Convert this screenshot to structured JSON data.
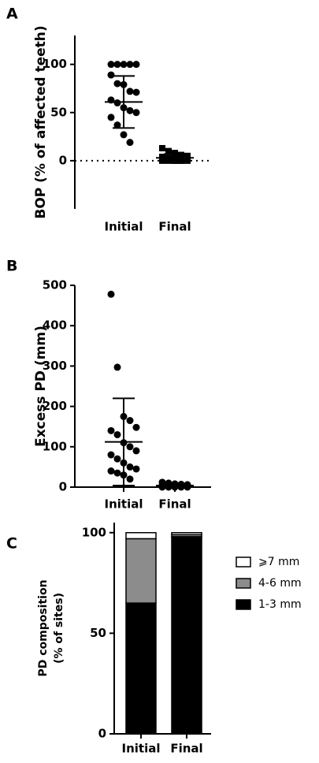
{
  "chart_data": [
    {
      "type": "strip",
      "label": "A",
      "ylabel": "BOP (% of affected teeth)",
      "categories": [
        "Initial",
        "Final"
      ],
      "series": [
        {
          "values": [
            100,
            100,
            100,
            100,
            100,
            89,
            80,
            79,
            72,
            71,
            63,
            60,
            55,
            52,
            50,
            45,
            37,
            27,
            19
          ],
          "marker": "circle",
          "mean": 61,
          "sd": 27,
          "color": "#000000"
        },
        {
          "values": [
            13,
            10,
            8,
            6,
            5,
            4,
            3,
            3,
            2,
            2,
            1,
            1,
            0,
            0,
            0,
            0,
            0,
            0,
            0
          ],
          "marker": "square",
          "mean": 3,
          "sd": 4,
          "color": "#000000"
        }
      ],
      "ylim": [
        -50,
        130
      ],
      "yticks": [
        0,
        50,
        100
      ],
      "hline": 0
    },
    {
      "type": "strip",
      "label": "B",
      "ylabel": "Excess PD (mm)",
      "categories": [
        "Initial",
        "Final"
      ],
      "series": [
        {
          "values": [
            478,
            297,
            175,
            165,
            148,
            140,
            130,
            110,
            100,
            90,
            80,
            70,
            60,
            50,
            45,
            40,
            35,
            30,
            20
          ],
          "marker": "circle",
          "mean": 112,
          "sd": 108,
          "color": "#000000"
        },
        {
          "values": [
            12,
            10,
            8,
            7,
            6,
            5,
            5,
            4,
            3,
            3,
            2,
            2,
            1,
            1,
            0,
            0,
            0,
            0,
            0
          ],
          "marker": "circle",
          "mean": 4,
          "sd": 4,
          "color": "#000000"
        }
      ],
      "ylim": [
        0,
        500
      ],
      "yticks": [
        0,
        100,
        200,
        300,
        400,
        500
      ]
    },
    {
      "type": "stacked_bar",
      "label": "C",
      "ylabel": [
        "PD composition",
        "(% of sites)"
      ],
      "categories": [
        "Initial",
        "Final"
      ],
      "series": [
        {
          "name": "1-3 mm",
          "color": "#000000",
          "values": [
            65,
            98
          ]
        },
        {
          "name": "4-6 mm",
          "color": "#8c8c8c",
          "values": [
            32,
            1
          ]
        },
        {
          "name": "⩾7 mm",
          "color": "#ffffff",
          "values": [
            3,
            1
          ]
        }
      ],
      "ylim": [
        0,
        105
      ],
      "yticks": [
        0,
        50,
        100
      ]
    }
  ]
}
